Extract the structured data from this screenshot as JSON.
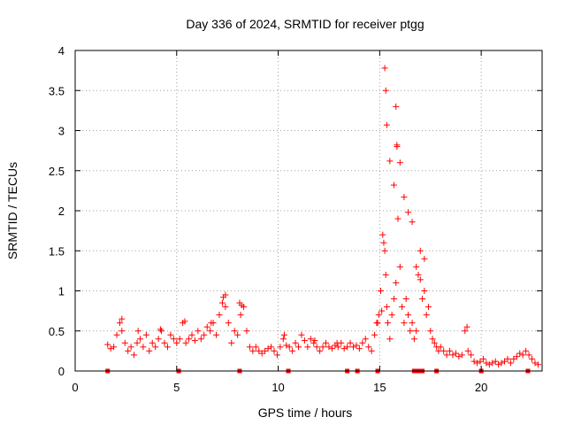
{
  "chart_data": {
    "type": "scatter",
    "title": "Day 336 of 2024, SRMTID for receiver ptgg",
    "xlabel": "GPS time / hours",
    "ylabel": "SRMTID / TECUs",
    "xlim": [
      0,
      23
    ],
    "ylim": [
      0,
      4
    ],
    "xticks": [
      0,
      5,
      10,
      15,
      20
    ],
    "yticks": [
      0,
      0.5,
      1,
      1.5,
      2,
      2.5,
      3,
      3.5,
      4
    ],
    "xtick_labels": [
      "0",
      "5",
      "10",
      "15",
      "20"
    ],
    "ytick_labels": [
      "0",
      "0.5",
      "1",
      "1.5",
      "2",
      "2.5",
      "3",
      "3.5",
      "4"
    ],
    "grid": true,
    "marker": "+",
    "marker_color": "#ff0000",
    "series": [
      {
        "name": "SRMTID",
        "x": [
          1.6,
          1.75,
          1.9,
          2.05,
          2.2,
          2.3,
          2.45,
          2.6,
          2.75,
          2.9,
          3.05,
          3.2,
          3.35,
          3.5,
          3.65,
          3.8,
          3.95,
          4.1,
          4.25,
          4.4,
          4.55,
          4.7,
          4.85,
          5.0,
          5.15,
          5.3,
          5.45,
          5.6,
          5.75,
          5.9,
          6.05,
          6.2,
          6.35,
          6.5,
          6.65,
          6.8,
          6.95,
          7.1,
          7.25,
          7.4,
          7.55,
          7.7,
          7.85,
          8.0,
          8.15,
          8.3,
          8.45,
          8.6,
          8.75,
          8.9,
          9.05,
          9.2,
          9.35,
          9.5,
          9.65,
          9.8,
          9.95,
          10.1,
          10.25,
          10.4,
          10.55,
          10.7,
          10.85,
          11.0,
          11.15,
          11.3,
          11.45,
          11.6,
          11.75,
          11.9,
          12.05,
          12.2,
          12.35,
          12.5,
          12.65,
          12.8,
          12.95,
          13.1,
          13.25,
          13.4,
          13.55,
          13.7,
          13.85,
          14.0,
          14.15,
          14.3,
          14.45,
          14.6,
          14.75,
          14.85,
          14.95,
          15.05,
          15.15,
          15.2,
          15.25,
          15.3,
          15.35,
          15.4,
          15.5,
          15.6,
          15.7,
          15.8,
          15.85,
          15.9,
          16.0,
          16.1,
          16.2,
          16.3,
          16.4,
          16.5,
          16.6,
          16.7,
          16.8,
          16.9,
          17.0,
          17.1,
          17.2,
          17.3,
          17.4,
          17.5,
          17.6,
          17.7,
          17.8,
          17.9,
          18.0,
          18.15,
          18.3,
          18.45,
          18.6,
          18.75,
          18.9,
          19.05,
          19.2,
          19.35,
          19.5,
          19.65,
          19.8,
          19.95,
          20.1,
          20.25,
          20.4,
          20.55,
          20.7,
          20.85,
          21.0,
          21.15,
          21.3,
          21.45,
          21.6,
          21.75,
          21.9,
          22.05,
          22.2,
          22.35,
          22.5,
          22.65,
          22.8,
          15.25,
          15.3,
          15.35,
          15.5,
          15.7,
          15.8,
          15.85,
          16.0,
          16.2,
          16.4,
          16.6,
          16.8,
          17.0,
          17.2,
          7.3,
          7.4,
          8.1,
          8.2,
          5.4,
          6.7,
          2.3,
          3.1,
          4.2,
          10.3,
          11.8,
          12.9,
          19.3,
          14.9,
          15.1
        ],
        "y": [
          0.33,
          0.28,
          0.3,
          0.45,
          0.6,
          0.5,
          0.35,
          0.25,
          0.3,
          0.2,
          0.35,
          0.4,
          0.3,
          0.45,
          0.25,
          0.35,
          0.3,
          0.4,
          0.5,
          0.35,
          0.3,
          0.45,
          0.4,
          0.35,
          0.4,
          0.6,
          0.35,
          0.4,
          0.45,
          0.38,
          0.5,
          0.4,
          0.45,
          0.55,
          0.5,
          0.6,
          0.45,
          0.7,
          0.85,
          0.8,
          0.6,
          0.35,
          0.5,
          0.45,
          0.7,
          0.8,
          0.5,
          0.3,
          0.25,
          0.3,
          0.25,
          0.22,
          0.25,
          0.28,
          0.3,
          0.25,
          0.2,
          0.3,
          0.4,
          0.32,
          0.3,
          0.25,
          0.35,
          0.3,
          0.45,
          0.38,
          0.3,
          0.4,
          0.35,
          0.3,
          0.25,
          0.3,
          0.35,
          0.3,
          0.28,
          0.32,
          0.3,
          0.35,
          0.28,
          0.3,
          0.35,
          0.3,
          0.32,
          0.28,
          0.35,
          0.4,
          0.3,
          0.25,
          0.45,
          0.6,
          0.7,
          1.0,
          1.7,
          1.6,
          1.5,
          1.2,
          0.8,
          0.6,
          0.4,
          0.7,
          0.9,
          1.1,
          2.8,
          1.9,
          1.3,
          0.8,
          0.6,
          0.9,
          0.7,
          0.5,
          0.6,
          0.4,
          0.5,
          1.2,
          1.5,
          0.9,
          1.4,
          0.7,
          0.8,
          0.5,
          0.4,
          0.35,
          0.3,
          0.25,
          0.3,
          0.25,
          0.2,
          0.25,
          0.2,
          0.22,
          0.18,
          0.2,
          0.5,
          0.25,
          0.2,
          0.12,
          0.1,
          0.12,
          0.15,
          0.1,
          0.08,
          0.1,
          0.12,
          0.08,
          0.1,
          0.12,
          0.15,
          0.1,
          0.15,
          0.18,
          0.22,
          0.2,
          0.25,
          0.2,
          0.15,
          0.1,
          0.08,
          3.78,
          3.5,
          3.07,
          2.62,
          2.32,
          3.3,
          2.82,
          2.6,
          2.17,
          1.98,
          1.86,
          1.3,
          1.14,
          1.0,
          0.92,
          0.95,
          0.85,
          0.82,
          0.62,
          0.6,
          0.65,
          0.5,
          0.52,
          0.45,
          0.38,
          0.35,
          0.55,
          0.6,
          0.75
        ],
        "baseline_x": [
          1.6,
          5.1,
          8.1,
          10.5,
          13.4,
          13.9,
          14.9,
          16.7,
          16.9,
          17.1,
          17.8,
          20.0,
          22.3
        ]
      }
    ]
  }
}
